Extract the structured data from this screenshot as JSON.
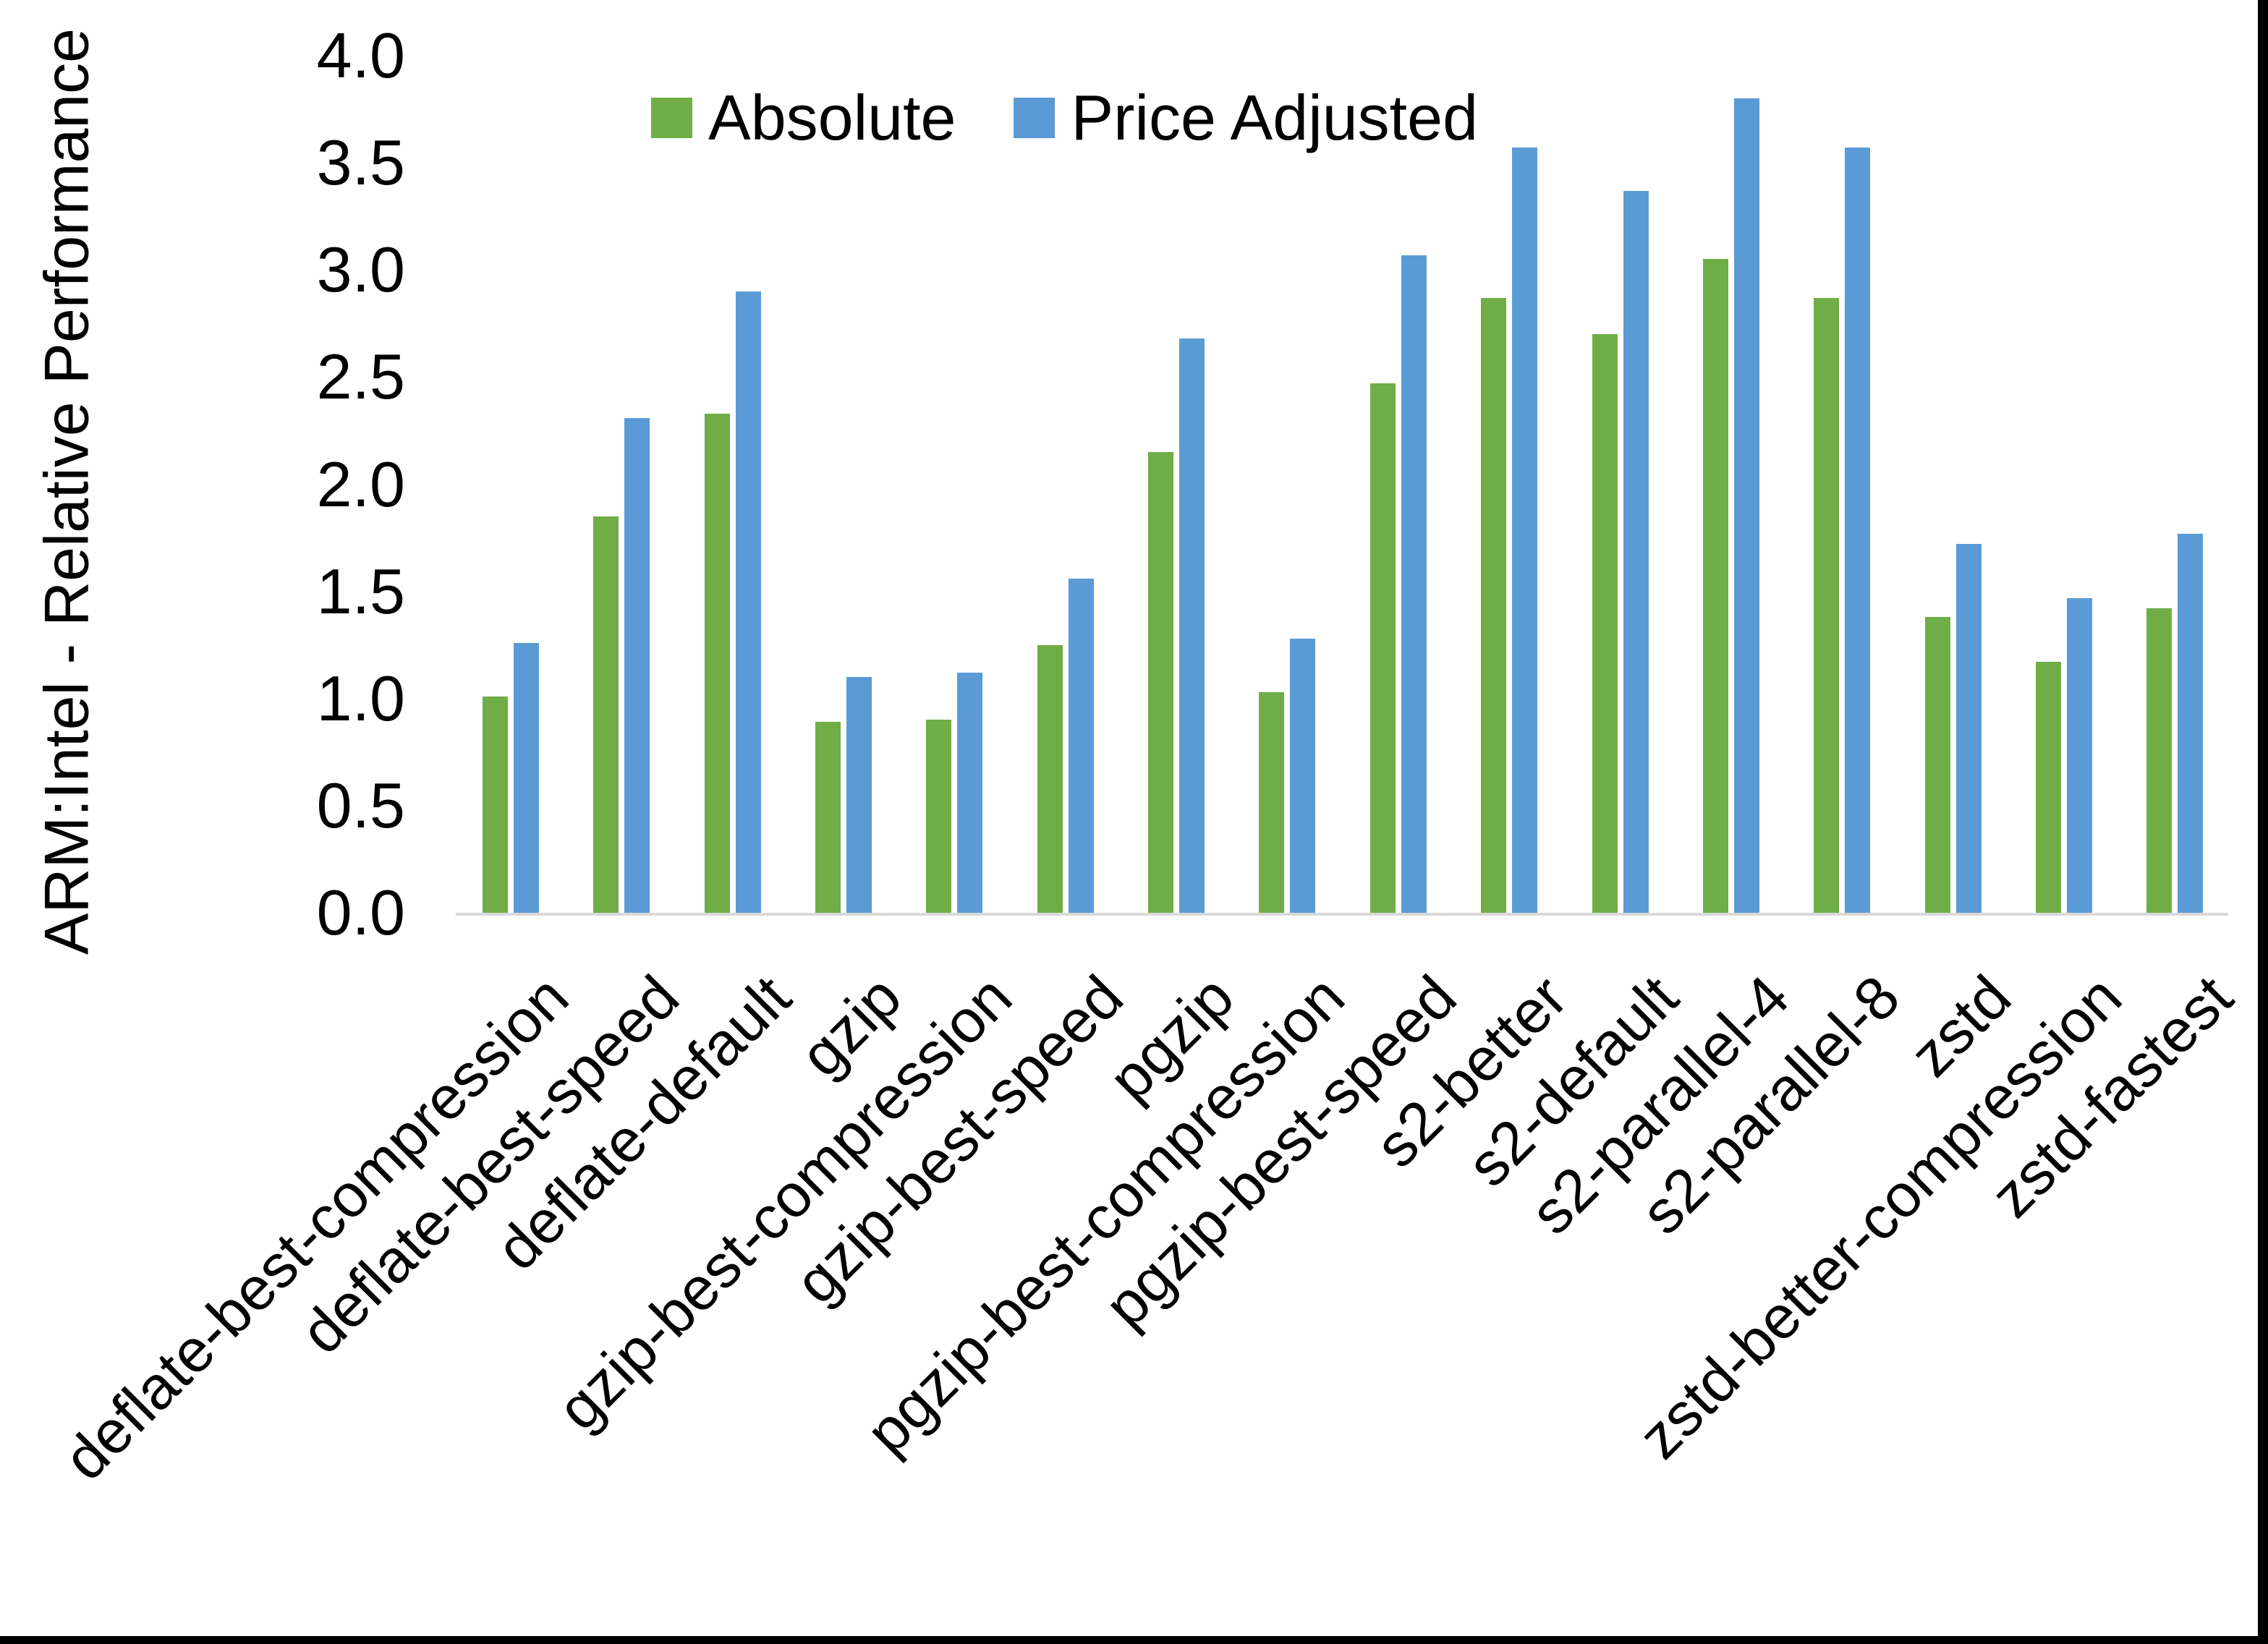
{
  "y_axis": {
    "title": "ARM:Intel - Relative Performance",
    "ticks": [
      "4.0",
      "3.5",
      "3.0",
      "2.5",
      "2.0",
      "1.5",
      "1.0",
      "0.5",
      "0.0"
    ]
  },
  "legend": {
    "items": [
      {
        "label": "Absolute",
        "color": "#70AD47"
      },
      {
        "label": "Price Adjusted",
        "color": "#5B9BD5"
      }
    ]
  },
  "chart_data": {
    "type": "bar",
    "title": "",
    "ylabel": "ARM:Intel - Relative Performance",
    "xlabel": "",
    "ylim": [
      0.0,
      4.0
    ],
    "ytick_step": 0.5,
    "grid": false,
    "legend_position": "top-center",
    "axis_line_color": "#D9D9D9",
    "categories": [
      "deflate-best-compression",
      "deflate-best-speed",
      "deflate-default",
      "gzip",
      "gzip-best-compression",
      "gzip-best-speed",
      "pgzip",
      "pgzip-best-compression",
      "pgzip-best-speed",
      "s2-better",
      "s2-default",
      "s2-parallel-4",
      "s2-parallel-8",
      "zstd",
      "zstd-better-compression",
      "zstd-fastest"
    ],
    "series": [
      {
        "name": "Absolute",
        "color": "#70AD47",
        "values": [
          1.01,
          1.85,
          2.33,
          0.89,
          0.9,
          1.25,
          2.15,
          1.03,
          2.47,
          2.87,
          2.7,
          3.05,
          2.87,
          1.38,
          1.17,
          1.42
        ]
      },
      {
        "name": "Price Adjusted",
        "color": "#5B9BD5",
        "values": [
          1.26,
          2.31,
          2.9,
          1.1,
          1.12,
          1.56,
          2.68,
          1.28,
          3.07,
          3.57,
          3.37,
          3.8,
          3.57,
          1.72,
          1.47,
          1.77
        ]
      }
    ]
  }
}
